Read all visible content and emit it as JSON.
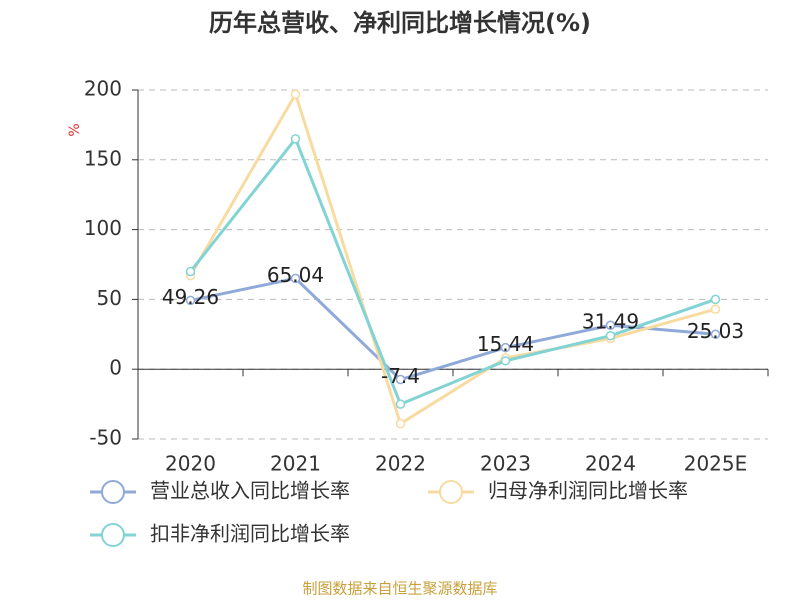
{
  "chart_data": {
    "type": "line",
    "title": "历年总营收、净利同比增长情况(%)",
    "y_label": "%",
    "categories": [
      "2020",
      "2021",
      "2022",
      "2023",
      "2024",
      "2025E"
    ],
    "series": [
      {
        "name": "营业总收入同比增长率",
        "color": "#8fa9d8",
        "values": [
          49.26,
          65.04,
          -7.4,
          15.44,
          31.49,
          25.03
        ],
        "show_labels": true
      },
      {
        "name": "归母净利润同比增长率",
        "color": "#f8dba0",
        "values": [
          67,
          197,
          -39,
          8,
          22,
          43
        ]
      },
      {
        "name": "扣非净利润同比增长率",
        "color": "#82d3d4",
        "values": [
          70,
          165,
          -25,
          6,
          24,
          50
        ]
      }
    ],
    "ylim": [
      -50,
      200
    ],
    "yticks": [
      -50,
      0,
      50,
      100,
      150,
      200
    ],
    "grid": true,
    "source": "制图数据来自恒生聚源数据库"
  }
}
